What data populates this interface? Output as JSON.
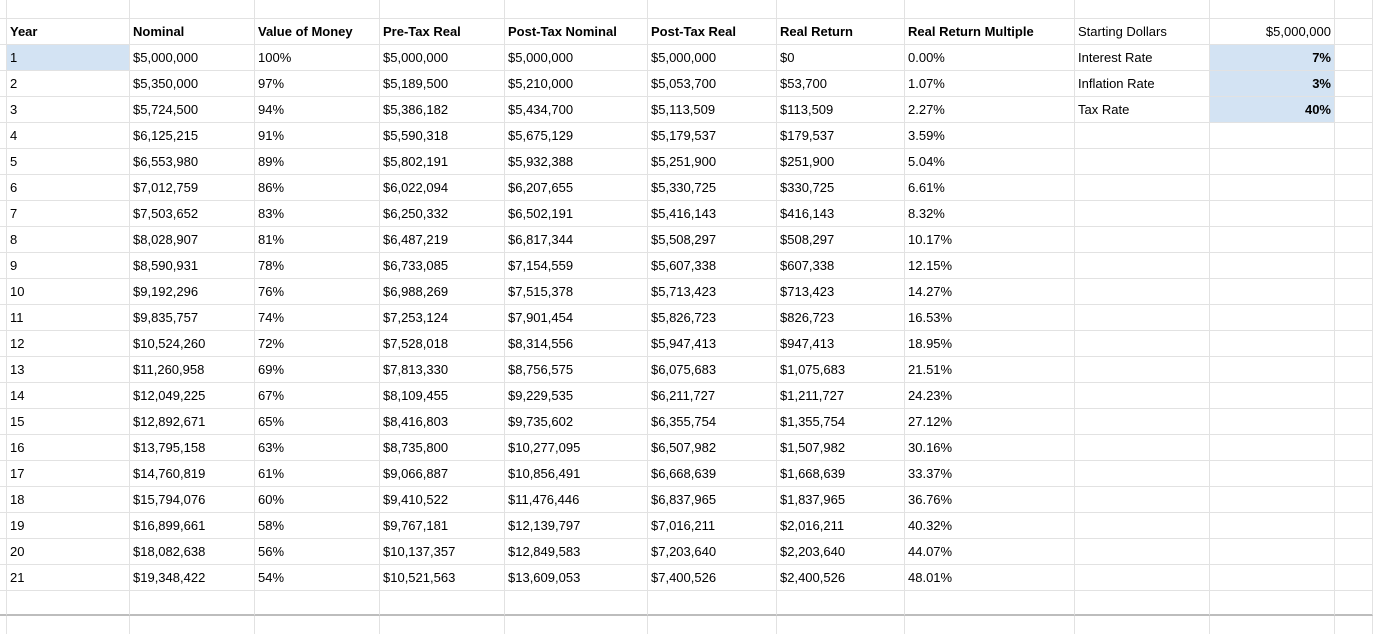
{
  "sheet": {
    "columns": [
      "Year",
      "Nominal",
      "Value of Money",
      "Pre-Tax Real",
      "Post-Tax Nominal",
      "Post-Tax Real",
      "Real Return",
      "Real Return Multiple"
    ],
    "rows": [
      [
        "1",
        "$5,000,000",
        "100%",
        "$5,000,000",
        "$5,000,000",
        "$5,000,000",
        "$0",
        "0.00%"
      ],
      [
        "2",
        "$5,350,000",
        "97%",
        "$5,189,500",
        "$5,210,000",
        "$5,053,700",
        "$53,700",
        "1.07%"
      ],
      [
        "3",
        "$5,724,500",
        "94%",
        "$5,386,182",
        "$5,434,700",
        "$5,113,509",
        "$113,509",
        "2.27%"
      ],
      [
        "4",
        "$6,125,215",
        "91%",
        "$5,590,318",
        "$5,675,129",
        "$5,179,537",
        "$179,537",
        "3.59%"
      ],
      [
        "5",
        "$6,553,980",
        "89%",
        "$5,802,191",
        "$5,932,388",
        "$5,251,900",
        "$251,900",
        "5.04%"
      ],
      [
        "6",
        "$7,012,759",
        "86%",
        "$6,022,094",
        "$6,207,655",
        "$5,330,725",
        "$330,725",
        "6.61%"
      ],
      [
        "7",
        "$7,503,652",
        "83%",
        "$6,250,332",
        "$6,502,191",
        "$5,416,143",
        "$416,143",
        "8.32%"
      ],
      [
        "8",
        "$8,028,907",
        "81%",
        "$6,487,219",
        "$6,817,344",
        "$5,508,297",
        "$508,297",
        "10.17%"
      ],
      [
        "9",
        "$8,590,931",
        "78%",
        "$6,733,085",
        "$7,154,559",
        "$5,607,338",
        "$607,338",
        "12.15%"
      ],
      [
        "10",
        "$9,192,296",
        "76%",
        "$6,988,269",
        "$7,515,378",
        "$5,713,423",
        "$713,423",
        "14.27%"
      ],
      [
        "11",
        "$9,835,757",
        "74%",
        "$7,253,124",
        "$7,901,454",
        "$5,826,723",
        "$826,723",
        "16.53%"
      ],
      [
        "12",
        "$10,524,260",
        "72%",
        "$7,528,018",
        "$8,314,556",
        "$5,947,413",
        "$947,413",
        "18.95%"
      ],
      [
        "13",
        "$11,260,958",
        "69%",
        "$7,813,330",
        "$8,756,575",
        "$6,075,683",
        "$1,075,683",
        "21.51%"
      ],
      [
        "14",
        "$12,049,225",
        "67%",
        "$8,109,455",
        "$9,229,535",
        "$6,211,727",
        "$1,211,727",
        "24.23%"
      ],
      [
        "15",
        "$12,892,671",
        "65%",
        "$8,416,803",
        "$9,735,602",
        "$6,355,754",
        "$1,355,754",
        "27.12%"
      ],
      [
        "16",
        "$13,795,158",
        "63%",
        "$8,735,800",
        "$10,277,095",
        "$6,507,982",
        "$1,507,982",
        "30.16%"
      ],
      [
        "17",
        "$14,760,819",
        "61%",
        "$9,066,887",
        "$10,856,491",
        "$6,668,639",
        "$1,668,639",
        "33.37%"
      ],
      [
        "18",
        "$15,794,076",
        "60%",
        "$9,410,522",
        "$11,476,446",
        "$6,837,965",
        "$1,837,965",
        "36.76%"
      ],
      [
        "19",
        "$16,899,661",
        "58%",
        "$9,767,181",
        "$12,139,797",
        "$7,016,211",
        "$2,016,211",
        "40.32%"
      ],
      [
        "20",
        "$18,082,638",
        "56%",
        "$10,137,357",
        "$12,849,583",
        "$7,203,640",
        "$2,203,640",
        "44.07%"
      ],
      [
        "21",
        "$19,348,422",
        "54%",
        "$10,521,563",
        "$13,609,053",
        "$7,400,526",
        "$2,400,526",
        "48.01%"
      ]
    ],
    "params": [
      {
        "label": "Starting Dollars",
        "value": "$5,000,000",
        "highlighted": false,
        "bold": false
      },
      {
        "label": "Interest Rate",
        "value": "7%",
        "highlighted": true,
        "bold": true
      },
      {
        "label": "Inflation Rate",
        "value": "3%",
        "highlighted": true,
        "bold": true
      },
      {
        "label": "Tax Rate",
        "value": "40%",
        "highlighted": true,
        "bold": true
      }
    ],
    "highlighted_year_row": "1",
    "colors": {
      "highlight": "#d3e3f3",
      "gridline": "#e2e2e2",
      "strongline": "#bdbdbd"
    }
  }
}
